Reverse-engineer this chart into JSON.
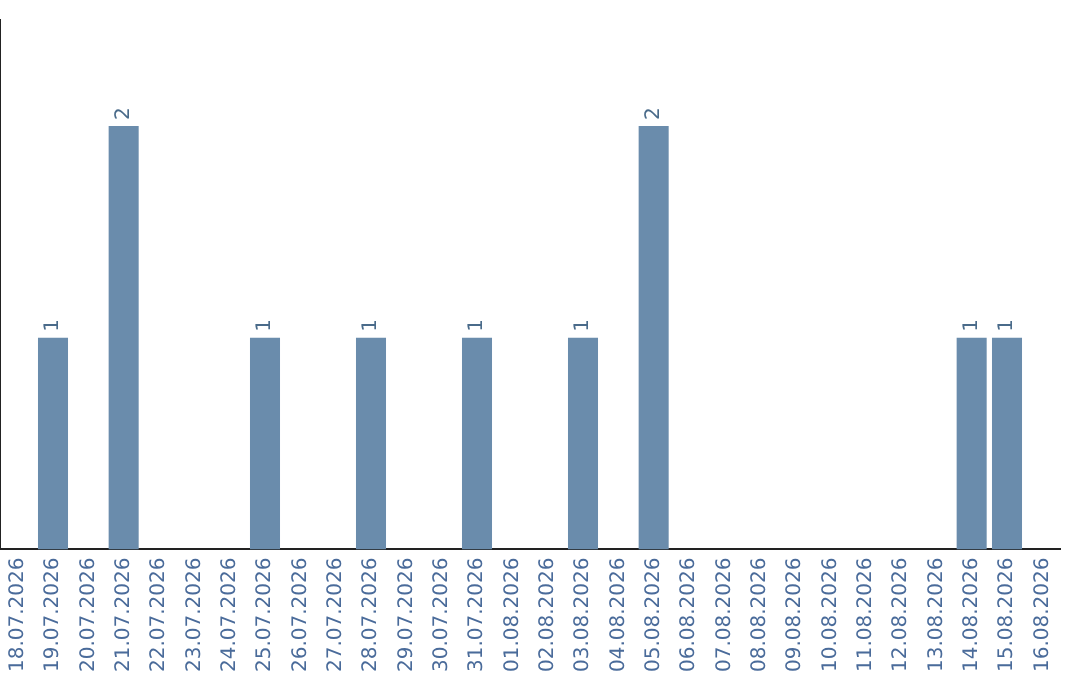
{
  "chart_data": {
    "type": "bar",
    "categories": [
      "18.07.2026",
      "19.07.2026",
      "20.07.2026",
      "21.07.2026",
      "22.07.2026",
      "23.07.2026",
      "24.07.2026",
      "25.07.2026",
      "26.07.2026",
      "27.07.2026",
      "28.07.2026",
      "29.07.2026",
      "30.07.2026",
      "31.07.2026",
      "01.08.2026",
      "02.08.2026",
      "03.08.2026",
      "04.08.2026",
      "05.08.2026",
      "06.08.2026",
      "07.08.2026",
      "08.08.2026",
      "09.08.2026",
      "10.08.2026",
      "11.08.2026",
      "12.08.2026",
      "13.08.2026",
      "14.08.2026",
      "15.08.2026",
      "16.08.2026"
    ],
    "values": [
      0,
      1,
      0,
      2,
      0,
      0,
      0,
      1,
      0,
      0,
      1,
      0,
      0,
      1,
      0,
      0,
      1,
      0,
      2,
      0,
      0,
      0,
      0,
      0,
      0,
      0,
      0,
      1,
      1,
      0
    ],
    "value_labels": [
      null,
      "1",
      null,
      "2",
      null,
      null,
      null,
      "1",
      null,
      null,
      "1",
      null,
      null,
      "1",
      null,
      null,
      "1",
      null,
      "2",
      null,
      null,
      null,
      null,
      null,
      null,
      null,
      null,
      "1",
      "1",
      null
    ],
    "color": "#6a8cac",
    "grid": false,
    "legend": false,
    "tick_labels": "x"
  }
}
